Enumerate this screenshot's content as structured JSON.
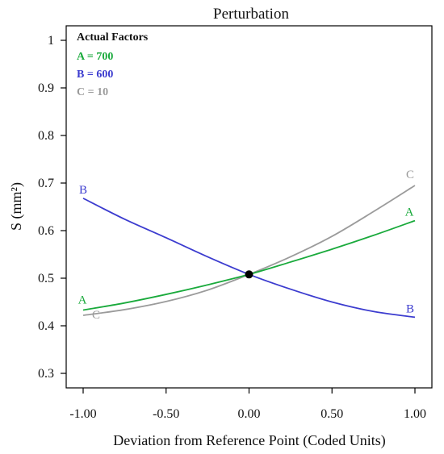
{
  "chart_data": {
    "type": "line",
    "title": "Perturbation",
    "xlabel": "Deviation from Reference Point (Coded Units)",
    "ylabel": "S (mm²)",
    "xlim": [
      -1.0,
      1.0
    ],
    "ylim": [
      0.25,
      1.05
    ],
    "x_ticks": [
      -1.0,
      -0.5,
      0.0,
      0.5,
      1.0
    ],
    "x_tick_labels": [
      "-1.00",
      "-0.50",
      "0.00",
      "0.50",
      "1.00"
    ],
    "y_ticks": [
      0.3,
      0.4,
      0.5,
      0.6,
      0.7,
      0.8,
      0.9,
      1.0
    ],
    "y_tick_labels": [
      "0.3",
      "0.4",
      "0.5",
      "0.6",
      "0.7",
      "0.8",
      "0.9",
      "1"
    ],
    "grid": false,
    "legend": {
      "placement": "top-left",
      "heading": "Actual Factors",
      "entries": [
        {
          "label": "A = 700",
          "color": "#1aaa3c"
        },
        {
          "label": "B = 600",
          "color": "#3c3ccf"
        },
        {
          "label": "C = 10",
          "color": "#9b9b9b"
        }
      ]
    },
    "reference_point": {
      "x": 0.0,
      "y": 0.508
    },
    "series": [
      {
        "name": "A",
        "color": "#1aaa3c",
        "x": [
          -1.0,
          -0.75,
          -0.5,
          -0.25,
          0.0,
          0.25,
          0.5,
          0.75,
          1.0
        ],
        "y": [
          0.433,
          0.448,
          0.466,
          0.486,
          0.508,
          0.534,
          0.561,
          0.59,
          0.621
        ]
      },
      {
        "name": "B",
        "color": "#3c3ccf",
        "x": [
          -1.0,
          -0.75,
          -0.5,
          -0.25,
          0.0,
          0.25,
          0.5,
          0.75,
          1.0
        ],
        "y": [
          0.668,
          0.624,
          0.585,
          0.545,
          0.508,
          0.477,
          0.45,
          0.43,
          0.418
        ]
      },
      {
        "name": "C",
        "color": "#9b9b9b",
        "x": [
          -1.0,
          -0.75,
          -0.5,
          -0.25,
          0.0,
          0.25,
          0.5,
          0.75,
          1.0
        ],
        "y": [
          0.422,
          0.434,
          0.451,
          0.475,
          0.508,
          0.545,
          0.588,
          0.64,
          0.695
        ]
      }
    ]
  }
}
